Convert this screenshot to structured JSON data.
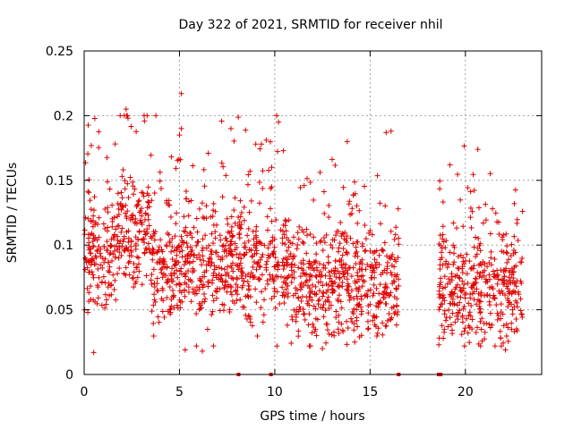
{
  "chart_data": {
    "type": "scatter",
    "title": "Day 322 of 2021, SRMTID for receiver nhil",
    "xlabel": "GPS time / hours",
    "ylabel": "SRMTID / TECUs",
    "xlim": [
      0,
      24
    ],
    "ylim": [
      0,
      0.25
    ],
    "xticks": [
      0,
      5,
      10,
      15,
      20
    ],
    "xtick_labels": [
      "0",
      "5",
      "10",
      "15",
      "20"
    ],
    "yticks": [
      0,
      0.05,
      0.1,
      0.15,
      0.2,
      0.25
    ],
    "ytick_labels": [
      "0",
      "0.05",
      "0.1",
      "0.15",
      "0.2",
      "0.25"
    ],
    "grid": true,
    "marker": "+",
    "series_color": "#e00000",
    "series": [
      {
        "name": "SRMTID",
        "segments": [
          {
            "x_start": 0.0,
            "x_end": 16.5,
            "pattern": "dense"
          },
          {
            "x_start": 18.6,
            "x_end": 23.0,
            "pattern": "dense"
          }
        ],
        "highlights": [
          {
            "x": 2.2,
            "y": 0.205
          },
          {
            "x": 2.1,
            "y": 0.2
          },
          {
            "x": 2.3,
            "y": 0.198
          },
          {
            "x": 5.1,
            "y": 0.217
          },
          {
            "x": 5.1,
            "y": 0.19
          },
          {
            "x": 5.0,
            "y": 0.185
          },
          {
            "x": 7.7,
            "y": 0.19
          },
          {
            "x": 10.1,
            "y": 0.2
          },
          {
            "x": 10.2,
            "y": 0.195
          },
          {
            "x": 9.3,
            "y": 0.178
          },
          {
            "x": 13.8,
            "y": 0.18
          },
          {
            "x": 16.1,
            "y": 0.188
          },
          {
            "x": 0.5,
            "y": 0.017
          },
          {
            "x": 5.3,
            "y": 0.019
          },
          {
            "x": 6.2,
            "y": 0.018
          },
          {
            "x": 12.5,
            "y": 0.02
          },
          {
            "x": 22.1,
            "y": 0.019
          }
        ],
        "near_zero_marks_x": [
          8.1,
          9.8,
          16.5,
          18.6,
          18.7
        ]
      }
    ]
  }
}
